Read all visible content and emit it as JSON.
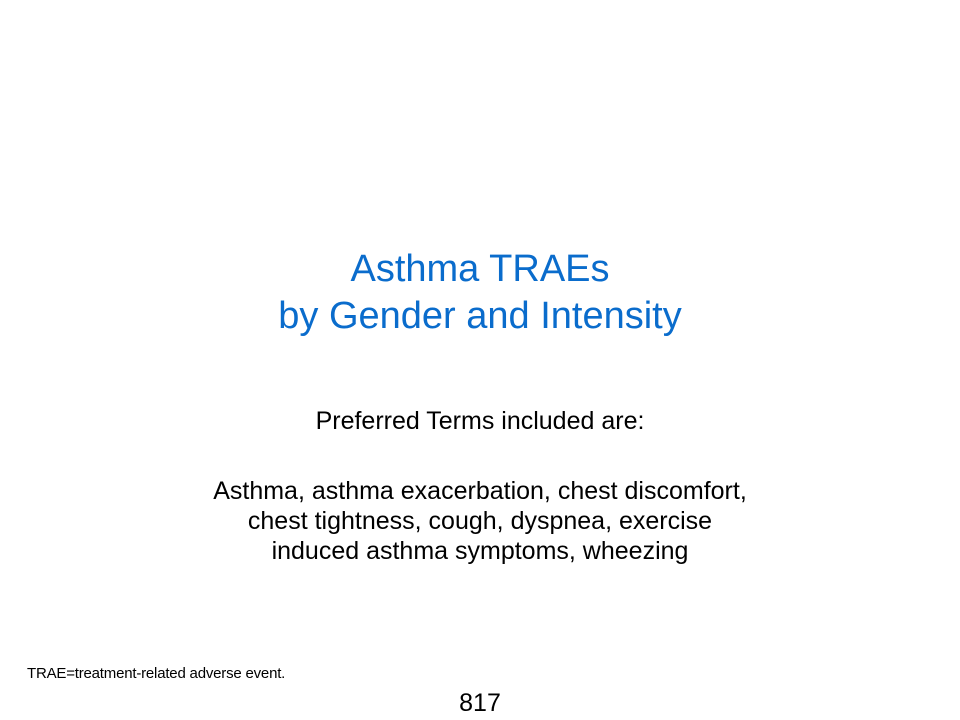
{
  "slide": {
    "title_lines": [
      "Asthma TRAEs",
      "by Gender and Intensity"
    ],
    "subtitle": "Preferred Terms included are:",
    "terms_lines": [
      "Asthma, asthma exacerbation, chest discomfort,",
      "chest tightness, cough, dyspnea, exercise",
      "induced asthma symptoms, wheezing"
    ],
    "footnote": "TRAE=treatment-related adverse event.",
    "page_number": "817",
    "colors": {
      "title": "#0a6ccc",
      "body_text": "#000000",
      "background": "#ffffff"
    }
  }
}
